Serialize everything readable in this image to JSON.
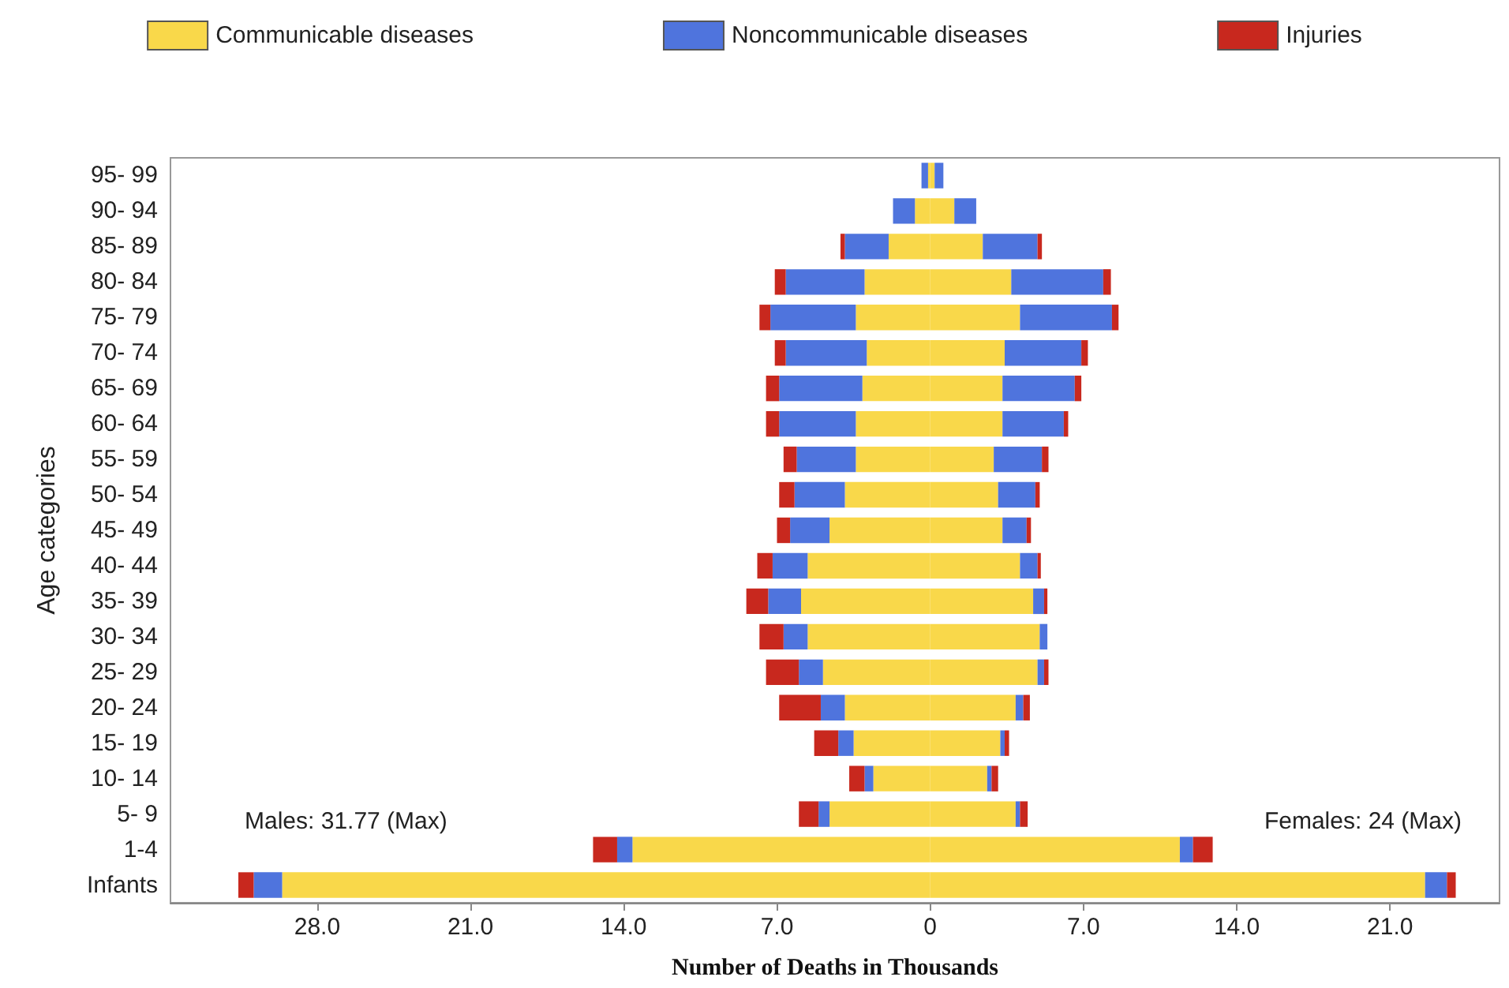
{
  "chart_data": {
    "type": "bar",
    "orientation": "horizontal",
    "stacked": true,
    "xlabel": "Number of Deaths in Thousands",
    "ylabel": "Age categories",
    "categories": [
      "95- 99",
      "90- 94",
      "85- 89",
      "80- 84",
      "75- 79",
      "70- 74",
      "65- 69",
      "60- 64",
      "55- 59",
      "50- 54",
      "45- 49",
      "40- 44",
      "35- 39",
      "30- 34",
      "25- 29",
      "20- 24",
      "15- 19",
      "10- 14",
      "5- 9",
      "1-4",
      "Infants"
    ],
    "series": [
      {
        "name": "Communicable diseases",
        "color": "#f9d84a",
        "values": [
          -0.1,
          -0.7,
          -1.9,
          -3.0,
          -3.4,
          -2.9,
          -3.1,
          -3.4,
          -3.4,
          -3.9,
          -4.6,
          -5.6,
          -5.9,
          -5.6,
          -4.9,
          -3.9,
          -3.5,
          -2.6,
          -4.6,
          -13.6,
          -29.6
        ]
      },
      {
        "name": "Noncommunicable diseases",
        "color": "#4f74dd",
        "values": [
          -0.3,
          -1.0,
          -2.0,
          -3.6,
          -3.9,
          -3.7,
          -3.8,
          -3.5,
          -2.7,
          -2.3,
          -1.8,
          -1.6,
          -1.5,
          -1.1,
          -1.1,
          -1.1,
          -0.7,
          -0.4,
          -0.5,
          -0.7,
          -1.3
        ]
      },
      {
        "name": "Injuries",
        "color": "#c8281e",
        "values": [
          null,
          null,
          -0.2,
          -0.5,
          -0.5,
          -0.5,
          -0.6,
          -0.6,
          -0.6,
          -0.7,
          -0.6,
          -0.7,
          -1.0,
          -1.1,
          -1.5,
          -1.9,
          -1.1,
          -0.7,
          -0.9,
          -1.1,
          -0.7
        ]
      },
      {
        "color": "#f9d84a",
        "values": [
          0.2,
          1.1,
          2.4,
          3.7,
          4.1,
          3.4,
          3.3,
          3.3,
          2.9,
          3.1,
          3.3,
          4.1,
          4.7,
          5.0,
          4.9,
          3.9,
          3.2,
          2.6,
          3.9,
          11.4,
          22.6
        ]
      },
      {
        "color": "#4f74dd",
        "values": [
          0.4,
          1.0,
          2.5,
          4.2,
          4.2,
          3.5,
          3.3,
          2.8,
          2.2,
          1.7,
          1.1,
          0.8,
          0.5,
          0.35,
          0.3,
          0.35,
          0.2,
          0.2,
          0.2,
          0.6,
          1.0
        ]
      },
      {
        "color": "#c8281e",
        "values": [
          null,
          null,
          0.2,
          0.35,
          0.3,
          0.3,
          0.3,
          0.2,
          0.3,
          0.2,
          0.2,
          0.15,
          0.15,
          null,
          0.2,
          0.3,
          0.2,
          0.3,
          0.35,
          0.9,
          0.4
        ]
      }
    ],
    "xlim": [
      -34.7,
      26
    ],
    "xticks": [
      {
        "value": -28,
        "label": "28.0"
      },
      {
        "value": -21,
        "label": "21.0"
      },
      {
        "value": -14,
        "label": "14.0"
      },
      {
        "value": -7,
        "label": "7.0"
      },
      0,
      {
        "value": 7,
        "label": "7.0"
      },
      {
        "value": 14,
        "label": "14.0"
      },
      {
        "value": 21,
        "label": "21.0"
      }
    ],
    "annotations": [
      "Males: 31.77 (Max)",
      "Females: 24 (Max)"
    ],
    "legend": "top",
    "grid": false
  }
}
